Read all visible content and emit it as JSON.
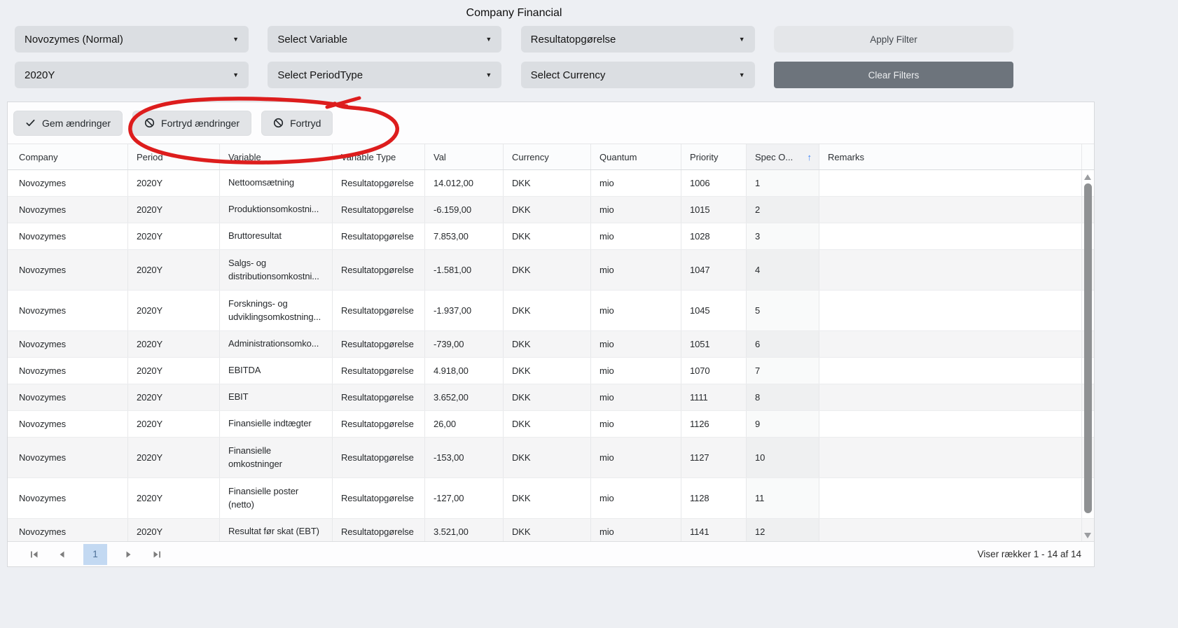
{
  "title": "Company Financial",
  "filters": {
    "company_value": "Novozymes (Normal)",
    "variable_value": "Select Variable",
    "variable_type_value": "Resultatopgørelse",
    "period_value": "2020Y",
    "period_type_value": "Select PeriodType",
    "currency_value": "Select Currency",
    "apply_label": "Apply Filter",
    "clear_label": "Clear Filters"
  },
  "toolbar": {
    "save_label": "Gem ændringer",
    "undo_changes_label": "Fortryd ændringer",
    "undo_label": "Fortryd",
    "save_icon": "checkmark-icon",
    "undo_icon": "ban-icon"
  },
  "annotation": {
    "shape": "hand-drawn-red-circle",
    "around": "Fortryd ændringer + Fortryd buttons",
    "color": "#dd1d1d"
  },
  "table": {
    "columns": [
      {
        "key": "company",
        "label": "Company"
      },
      {
        "key": "period",
        "label": "Period"
      },
      {
        "key": "variable",
        "label": "Variable"
      },
      {
        "key": "variable_type",
        "label": "Variable Type"
      },
      {
        "key": "val",
        "label": "Val"
      },
      {
        "key": "currency",
        "label": "Currency"
      },
      {
        "key": "quantum",
        "label": "Quantum"
      },
      {
        "key": "priority",
        "label": "Priority"
      },
      {
        "key": "spec_order",
        "label": "Spec O..."
      },
      {
        "key": "remarks",
        "label": "Remarks"
      }
    ],
    "sorted_key": "spec_order",
    "sort_direction": "ascending",
    "rows": [
      {
        "company": "Novozymes",
        "period": "2020Y",
        "variable": "Nettoomsætning",
        "variable_type": "Resultatopgørelse",
        "val": "14.012,00",
        "currency": "DKK",
        "quantum": "mio",
        "priority": "1006",
        "spec_order": "1",
        "remarks": ""
      },
      {
        "company": "Novozymes",
        "period": "2020Y",
        "variable": "Produktionsomkostni...",
        "variable_type": "Resultatopgørelse",
        "val": "-6.159,00",
        "currency": "DKK",
        "quantum": "mio",
        "priority": "1015",
        "spec_order": "2",
        "remarks": ""
      },
      {
        "company": "Novozymes",
        "period": "2020Y",
        "variable": "Bruttoresultat",
        "variable_type": "Resultatopgørelse",
        "val": "7.853,00",
        "currency": "DKK",
        "quantum": "mio",
        "priority": "1028",
        "spec_order": "3",
        "remarks": ""
      },
      {
        "company": "Novozymes",
        "period": "2020Y",
        "variable": "Salgs- og distributionsomkostni...",
        "variable_type": "Resultatopgørelse",
        "val": "-1.581,00",
        "currency": "DKK",
        "quantum": "mio",
        "priority": "1047",
        "spec_order": "4",
        "remarks": ""
      },
      {
        "company": "Novozymes",
        "period": "2020Y",
        "variable": "Forsknings- og udviklingsomkostning...",
        "variable_type": "Resultatopgørelse",
        "val": "-1.937,00",
        "currency": "DKK",
        "quantum": "mio",
        "priority": "1045",
        "spec_order": "5",
        "remarks": ""
      },
      {
        "company": "Novozymes",
        "period": "2020Y",
        "variable": "Administrationsomko...",
        "variable_type": "Resultatopgørelse",
        "val": "-739,00",
        "currency": "DKK",
        "quantum": "mio",
        "priority": "1051",
        "spec_order": "6",
        "remarks": ""
      },
      {
        "company": "Novozymes",
        "period": "2020Y",
        "variable": "EBITDA",
        "variable_type": "Resultatopgørelse",
        "val": "4.918,00",
        "currency": "DKK",
        "quantum": "mio",
        "priority": "1070",
        "spec_order": "7",
        "remarks": ""
      },
      {
        "company": "Novozymes",
        "period": "2020Y",
        "variable": "EBIT",
        "variable_type": "Resultatopgørelse",
        "val": "3.652,00",
        "currency": "DKK",
        "quantum": "mio",
        "priority": "1111",
        "spec_order": "8",
        "remarks": ""
      },
      {
        "company": "Novozymes",
        "period": "2020Y",
        "variable": "Finansielle indtægter",
        "variable_type": "Resultatopgørelse",
        "val": "26,00",
        "currency": "DKK",
        "quantum": "mio",
        "priority": "1126",
        "spec_order": "9",
        "remarks": ""
      },
      {
        "company": "Novozymes",
        "period": "2020Y",
        "variable": "Finansielle omkostninger",
        "variable_type": "Resultatopgørelse",
        "val": "-153,00",
        "currency": "DKK",
        "quantum": "mio",
        "priority": "1127",
        "spec_order": "10",
        "remarks": ""
      },
      {
        "company": "Novozymes",
        "period": "2020Y",
        "variable": "Finansielle poster (netto)",
        "variable_type": "Resultatopgørelse",
        "val": "-127,00",
        "currency": "DKK",
        "quantum": "mio",
        "priority": "1128",
        "spec_order": "11",
        "remarks": ""
      },
      {
        "company": "Novozymes",
        "period": "2020Y",
        "variable": "Resultat før skat (EBT)",
        "variable_type": "Resultatopgørelse",
        "val": "3.521,00",
        "currency": "DKK",
        "quantum": "mio",
        "priority": "1141",
        "spec_order": "12",
        "remarks": ""
      }
    ]
  },
  "pager": {
    "current_page": "1",
    "status": "Viser rækker 1 - 14 af 14"
  },
  "colors": {
    "annotation_red": "#dd1d1d",
    "sort_arrow_blue": "#3b82f6",
    "clear_button_bg": "#6d747c",
    "active_page_bg": "#c3d9f2",
    "page_background": "#edeff3"
  }
}
